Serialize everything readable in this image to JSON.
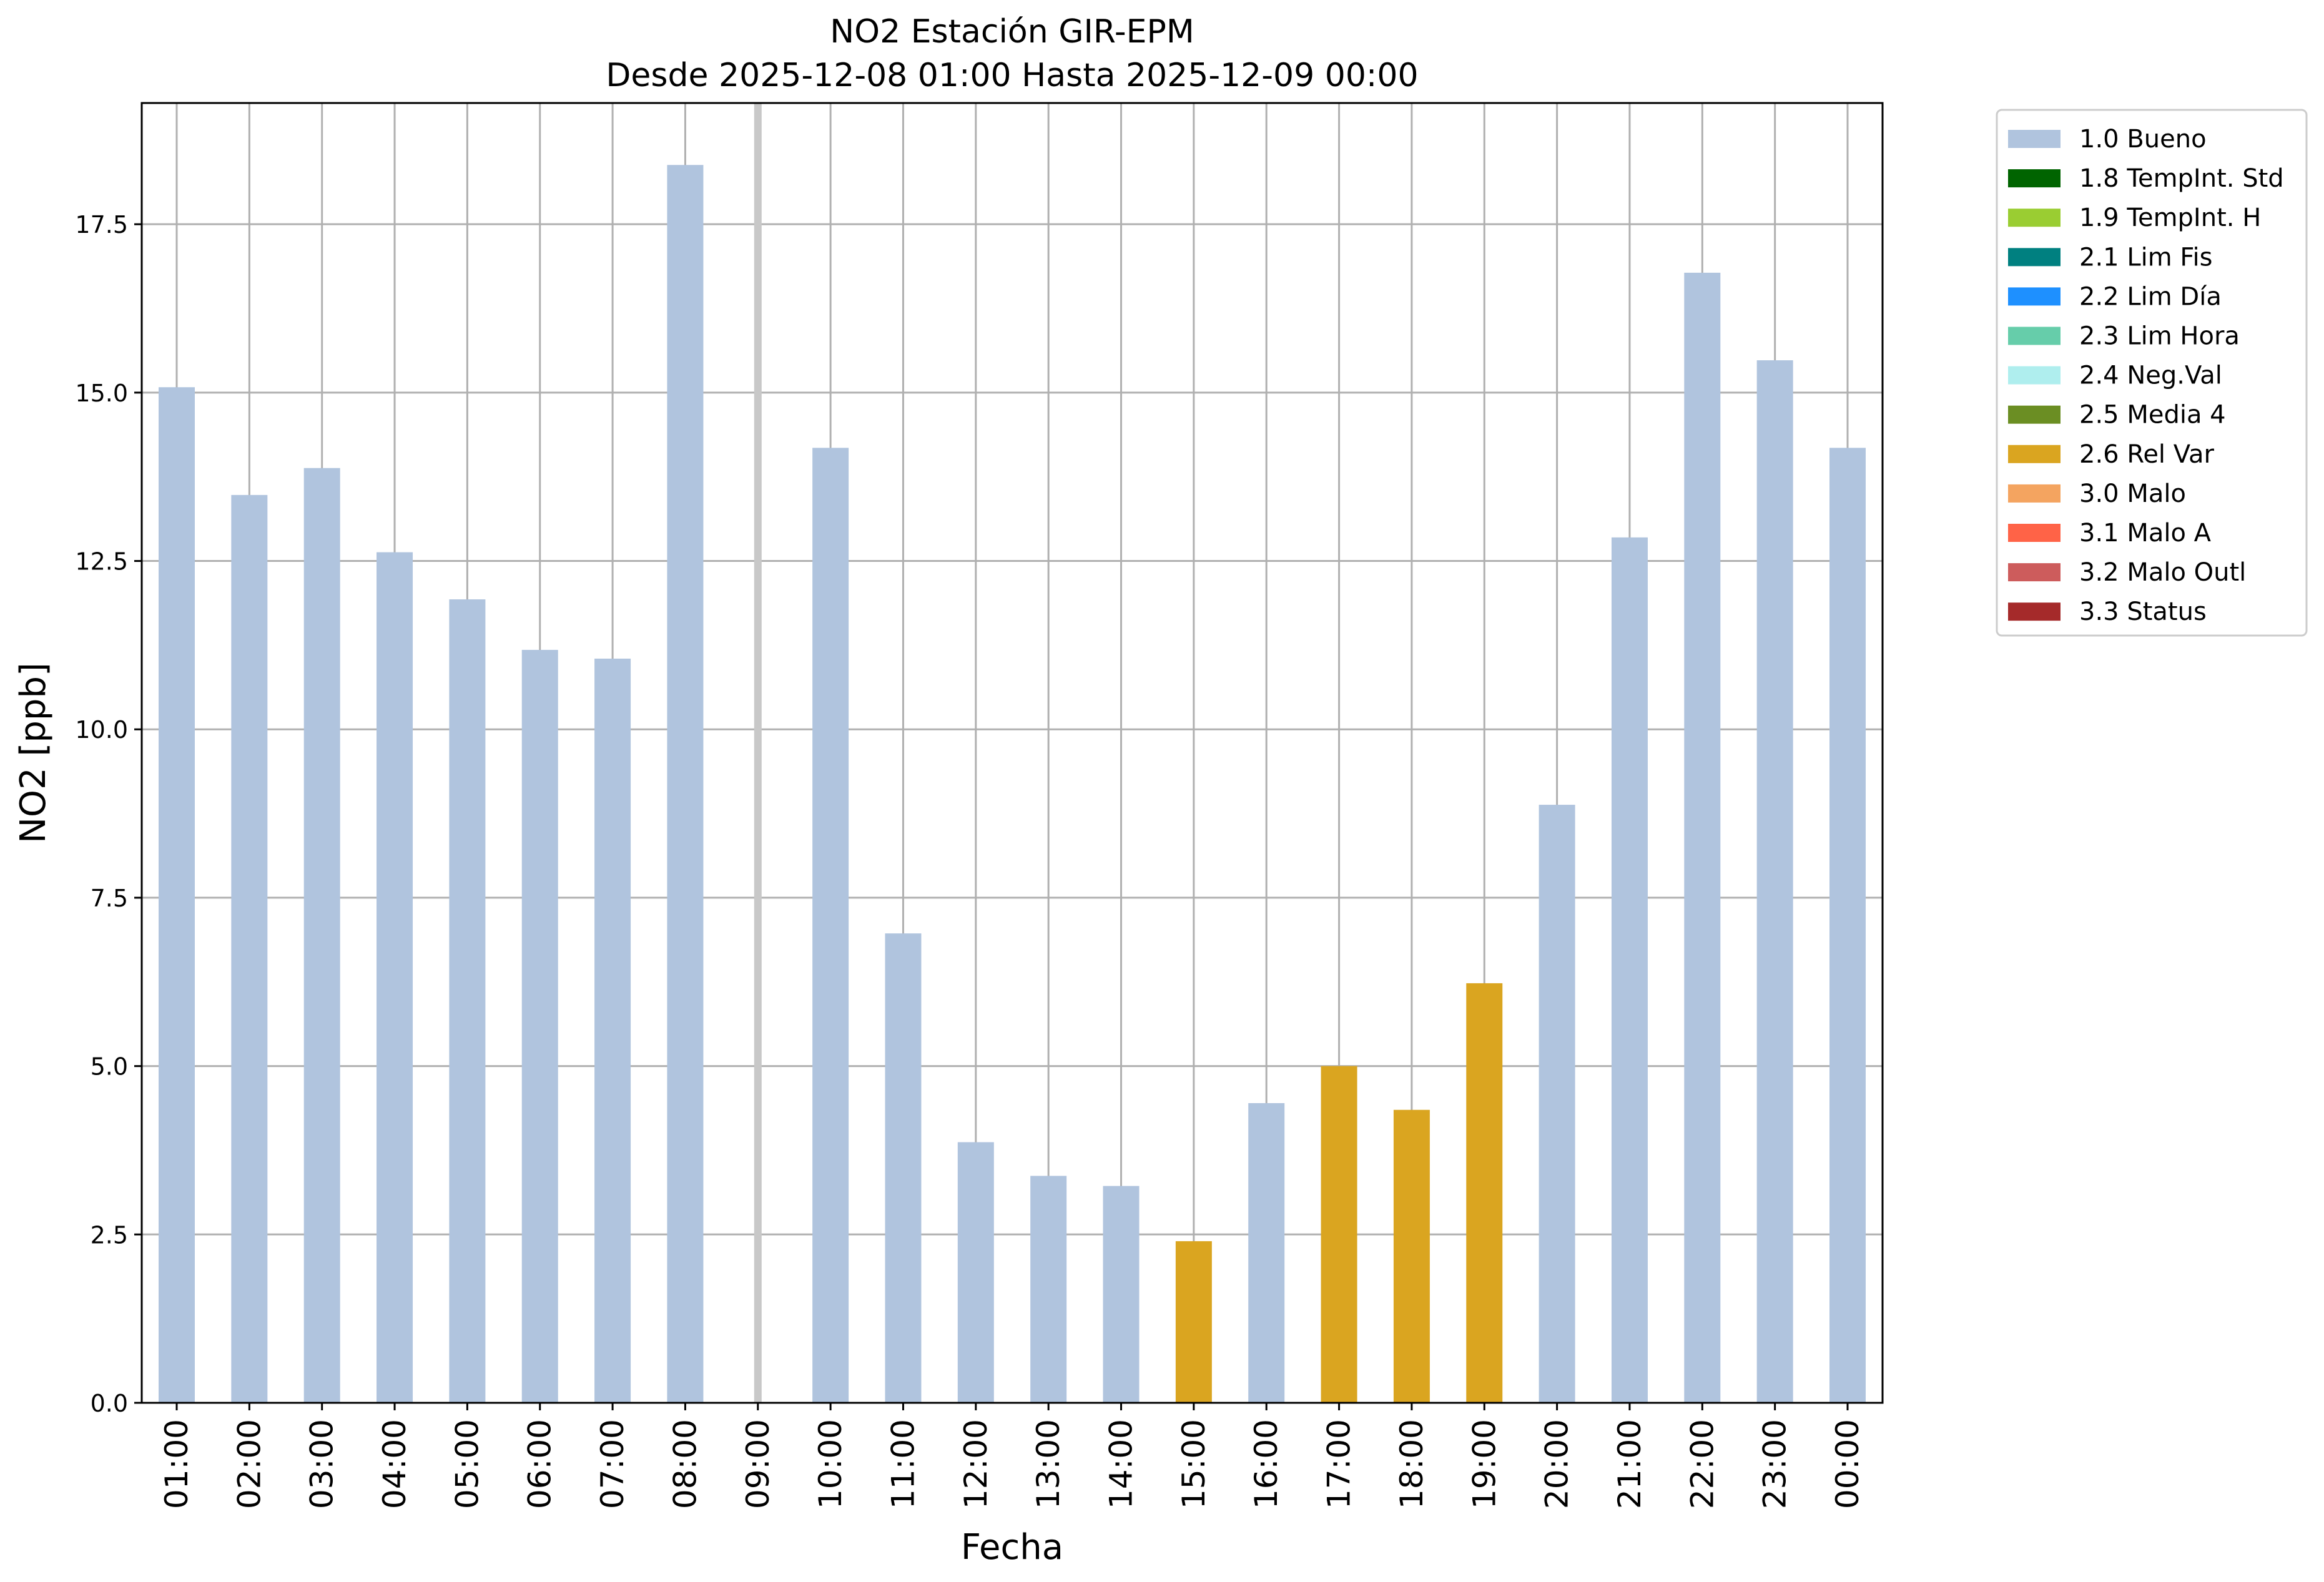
{
  "chart_data": {
    "type": "bar",
    "title_line1": "NO2 Estación GIR-EPM",
    "title_line2": "Desde 2025-12-08 01:00 Hasta 2025-12-09 00:00",
    "xlabel": "Fecha",
    "ylabel": "NO2 [ppb]",
    "ylim": [
      0,
      19.3
    ],
    "yticks": [
      "0.0",
      "2.5",
      "5.0",
      "7.5",
      "10.0",
      "12.5",
      "15.0",
      "17.5"
    ],
    "ytick_values": [
      0,
      2.5,
      5,
      7.5,
      10,
      12.5,
      15,
      17.5
    ],
    "grid": true,
    "legend_position": "outside-right",
    "categories": [
      "01:00",
      "02:00",
      "03:00",
      "04:00",
      "05:00",
      "06:00",
      "07:00",
      "08:00",
      "09:00",
      "10:00",
      "11:00",
      "12:00",
      "13:00",
      "14:00",
      "15:00",
      "16:00",
      "17:00",
      "18:00",
      "19:00",
      "20:00",
      "21:00",
      "22:00",
      "23:00",
      "00:00"
    ],
    "values": [
      15.08,
      13.48,
      13.88,
      12.63,
      11.93,
      11.18,
      11.05,
      18.38,
      null,
      14.18,
      6.97,
      3.87,
      3.37,
      3.22,
      2.4,
      4.45,
      5.0,
      4.35,
      6.23,
      8.88,
      12.85,
      16.78,
      15.48,
      14.18
    ],
    "flags": [
      "1.0 Bueno",
      "1.0 Bueno",
      "1.0 Bueno",
      "1.0 Bueno",
      "1.0 Bueno",
      "1.0 Bueno",
      "1.0 Bueno",
      "1.0 Bueno",
      null,
      "1.0 Bueno",
      "1.0 Bueno",
      "1.0 Bueno",
      "1.0 Bueno",
      "1.0 Bueno",
      "2.6 Rel Var",
      "1.0 Bueno",
      "2.6 Rel Var",
      "2.6 Rel Var",
      "2.6 Rel Var",
      "1.0 Bueno",
      "1.0 Bueno",
      "1.0 Bueno",
      "1.0 Bueno",
      "1.0 Bueno"
    ],
    "missing_marker_category": "09:00",
    "missing_marker_color": "#c8c8c8",
    "legend": [
      {
        "label": "1.0 Bueno",
        "color": "#b0c4de"
      },
      {
        "label": "1.8 TempInt. Std",
        "color": "#006400"
      },
      {
        "label": "1.9 TempInt. H",
        "color": "#9acd32"
      },
      {
        "label": "2.1 Lim Fis",
        "color": "#008080"
      },
      {
        "label": "2.2 Lim Día",
        "color": "#1e90ff"
      },
      {
        "label": "2.3 Lim Hora",
        "color": "#66cdaa"
      },
      {
        "label": "2.4 Neg.Val",
        "color": "#afeeee"
      },
      {
        "label": "2.5 Media 4",
        "color": "#6b8e23"
      },
      {
        "label": "2.6 Rel Var",
        "color": "#daa520"
      },
      {
        "label": "3.0 Malo",
        "color": "#f4a460"
      },
      {
        "label": "3.1 Malo A",
        "color": "#ff6347"
      },
      {
        "label": "3.2 Malo Outl",
        "color": "#cd5c5c"
      },
      {
        "label": "3.3 Status",
        "color": "#a52a2a"
      }
    ]
  }
}
